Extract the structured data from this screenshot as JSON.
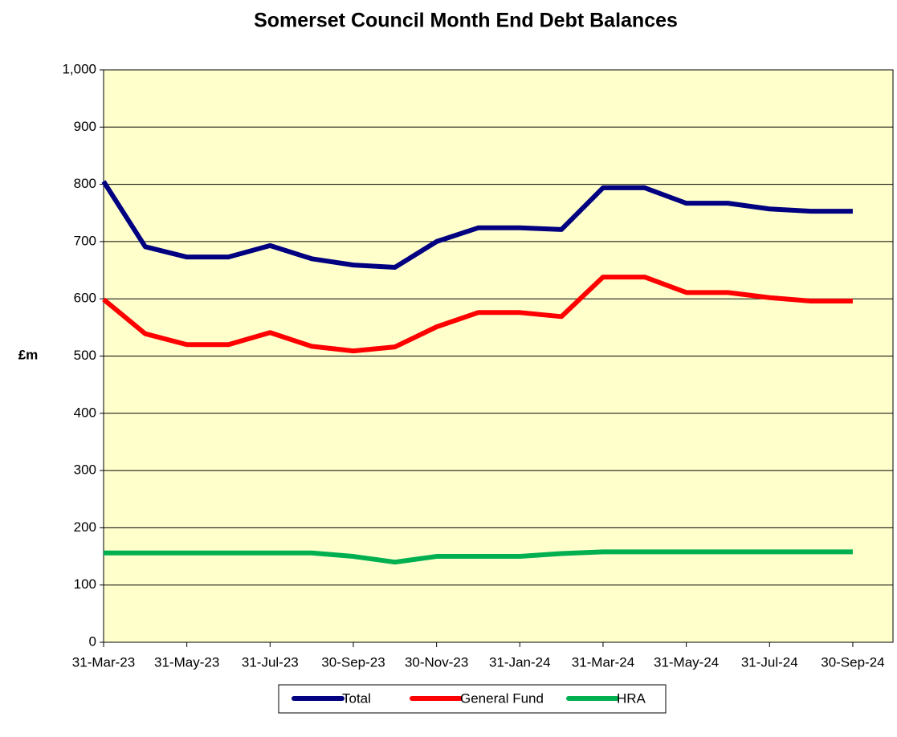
{
  "chart_data": {
    "type": "line",
    "title": "Somerset Council Month End Debt Balances",
    "y_label": "£m",
    "categories": [
      "31-Mar-23",
      null,
      "31-May-23",
      null,
      "31-Jul-23",
      null,
      "30-Sep-23",
      null,
      "30-Nov-23",
      null,
      "31-Jan-24",
      null,
      "31-Mar-24",
      null,
      "31-May-24",
      null,
      "31-Jul-24",
      null,
      "30-Sep-24"
    ],
    "series": [
      {
        "name": "Total",
        "color": "#000080",
        "values": [
          805,
          691,
          673,
          673,
          693,
          670,
          659,
          655,
          700,
          724,
          724,
          721,
          794,
          794,
          767,
          767,
          757,
          753,
          753
        ]
      },
      {
        "name": "General Fund",
        "color": "#ff0000",
        "values": [
          599,
          539,
          520,
          520,
          541,
          517,
          509,
          516,
          551,
          576,
          576,
          569,
          638,
          638,
          611,
          611,
          602,
          596,
          596
        ]
      },
      {
        "name": "HRA",
        "color": "#00b050",
        "values": [
          156,
          156,
          156,
          156,
          156,
          156,
          150,
          140,
          150,
          150,
          150,
          155,
          158,
          158,
          158,
          158,
          158,
          158,
          158
        ]
      }
    ],
    "ylim": [
      0,
      1000
    ],
    "yticks": [
      0,
      100,
      200,
      300,
      400,
      500,
      600,
      700,
      800,
      900,
      {
        "value": 1000,
        "label": "1,000"
      }
    ],
    "grid": true,
    "legend": "bottom"
  }
}
